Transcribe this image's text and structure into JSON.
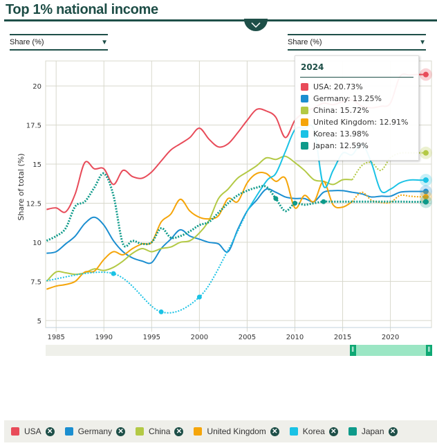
{
  "header": {
    "title": "Top 1% national income"
  },
  "selects": {
    "left": "Share (%)",
    "right": "Share (%)"
  },
  "tooltip": {
    "year": "2024",
    "rows": [
      {
        "label": "USA: 20.73%",
        "color": "#e84b59"
      },
      {
        "label": "Germany: 13.25%",
        "color": "#1b8ed0"
      },
      {
        "label": "China: 15.72%",
        "color": "#b3c945"
      },
      {
        "label": "United Kingdom: 12.91%",
        "color": "#f5a50a"
      },
      {
        "label": "Korea: 13.98%",
        "color": "#1ac2e5"
      },
      {
        "label": "Japan: 12.59%",
        "color": "#0e9a8a"
      }
    ]
  },
  "slider": {
    "range_start_fraction": 0.79,
    "range_end_fraction": 1.0
  },
  "legend": [
    {
      "label": "USA",
      "color": "#e84b59"
    },
    {
      "label": "Germany",
      "color": "#1b8ed0"
    },
    {
      "label": "China",
      "color": "#b3c945"
    },
    {
      "label": "United Kingdom",
      "color": "#f5a50a"
    },
    {
      "label": "Korea",
      "color": "#1ac2e5"
    },
    {
      "label": "Japan",
      "color": "#0e9a8a"
    }
  ],
  "chart_data": {
    "type": "line",
    "title": "Top 1% national income",
    "xlabel": "",
    "ylabel": "Share of total (%)",
    "xlim": [
      1984,
      2024
    ],
    "ylim": [
      4.5,
      22
    ],
    "x_ticks": [
      1985,
      1990,
      1995,
      2000,
      2005,
      2010,
      2015,
      2020
    ],
    "y_ticks": [
      5,
      7.5,
      10,
      12.5,
      15,
      17.5,
      20
    ],
    "grid": true,
    "legend_position": "bottom",
    "series": [
      {
        "name": "USA",
        "color": "#e84b59",
        "style": "solid",
        "points": [
          [
            1984,
            12.1
          ],
          [
            1985,
            12.2
          ],
          [
            1986,
            11.95
          ],
          [
            1987,
            13.1
          ],
          [
            1988,
            15.1
          ],
          [
            1989,
            14.7
          ],
          [
            1990,
            14.7
          ],
          [
            1991,
            13.7
          ],
          [
            1992,
            14.6
          ],
          [
            1993,
            14.2
          ],
          [
            1994,
            14.1
          ],
          [
            1995,
            14.5
          ],
          [
            1996,
            15.2
          ],
          [
            1997,
            15.9
          ],
          [
            1998,
            16.3
          ],
          [
            1999,
            16.7
          ],
          [
            2000,
            17.3
          ],
          [
            2001,
            16.6
          ],
          [
            2002,
            16.1
          ],
          [
            2003,
            16.3
          ],
          [
            2004,
            17.0
          ],
          [
            2005,
            17.8
          ],
          [
            2006,
            18.5
          ],
          [
            2007,
            18.4
          ],
          [
            2008,
            18.0
          ],
          [
            2009,
            16.7
          ],
          [
            2010,
            17.8
          ],
          [
            2011,
            18.3
          ],
          [
            2012,
            18.6
          ],
          [
            2013,
            18.9
          ],
          [
            2014,
            18.8
          ],
          [
            2015,
            19.0
          ],
          [
            2016,
            19.1
          ],
          [
            2017,
            18.7
          ],
          [
            2018,
            18.6
          ],
          [
            2019,
            18.7
          ],
          [
            2020,
            18.9
          ],
          [
            2021,
            20.6
          ],
          [
            2022,
            20.7
          ],
          [
            2023,
            20.73
          ],
          [
            2024,
            20.73
          ]
        ]
      },
      {
        "name": "Germany",
        "color": "#1b8ed0",
        "style": "solid",
        "points": [
          [
            1984,
            9.3
          ],
          [
            1985,
            9.4
          ],
          [
            1986,
            9.9
          ],
          [
            1987,
            10.4
          ],
          [
            1988,
            11.2
          ],
          [
            1989,
            11.6
          ],
          [
            1990,
            11.1
          ],
          [
            1991,
            10.1
          ],
          [
            1992,
            9.4
          ],
          [
            1993,
            9.0
          ],
          [
            1994,
            8.8
          ],
          [
            1995,
            8.7
          ],
          [
            1996,
            9.6
          ],
          [
            1997,
            10.2
          ],
          [
            1998,
            10.8
          ],
          [
            1999,
            10.4
          ],
          [
            2000,
            10.2
          ],
          [
            2001,
            10.0
          ],
          [
            2002,
            9.9
          ],
          [
            2003,
            9.4
          ],
          [
            2004,
            10.8
          ],
          [
            2005,
            12.0
          ],
          [
            2006,
            12.7
          ],
          [
            2007,
            13.4
          ],
          [
            2008,
            13.2
          ],
          [
            2009,
            12.9
          ],
          [
            2010,
            12.8
          ],
          [
            2011,
            12.8
          ],
          [
            2012,
            12.6
          ],
          [
            2013,
            13.2
          ],
          [
            2014,
            13.3
          ],
          [
            2015,
            13.3
          ],
          [
            2016,
            13.2
          ],
          [
            2017,
            13.1
          ],
          [
            2018,
            12.9
          ],
          [
            2019,
            12.95
          ],
          [
            2020,
            12.95
          ],
          [
            2021,
            13.2
          ],
          [
            2022,
            13.25
          ],
          [
            2023,
            13.25
          ],
          [
            2024,
            13.25
          ]
        ]
      },
      {
        "name": "China",
        "color": "#b3c945",
        "style": "solid_then_dotted",
        "points": [
          [
            1984,
            7.5
          ],
          [
            1985,
            8.1
          ],
          [
            1986,
            8.05
          ],
          [
            1987,
            7.95
          ],
          [
            1988,
            8.05
          ],
          [
            1989,
            8.3
          ],
          [
            1990,
            8.2
          ],
          [
            1991,
            8.4
          ],
          [
            1992,
            8.8
          ],
          [
            1993,
            9.3
          ],
          [
            1994,
            9.6
          ],
          [
            1995,
            9.4
          ],
          [
            1996,
            9.6
          ],
          [
            1997,
            9.7
          ],
          [
            1998,
            10.0
          ],
          [
            1999,
            10.1
          ],
          [
            2000,
            10.6
          ],
          [
            2001,
            11.4
          ],
          [
            2002,
            12.8
          ],
          [
            2003,
            13.4
          ],
          [
            2004,
            14.1
          ],
          [
            2005,
            14.5
          ],
          [
            2006,
            14.9
          ],
          [
            2007,
            15.4
          ],
          [
            2008,
            15.3
          ],
          [
            2009,
            15.5
          ],
          [
            2010,
            15.1
          ],
          [
            2011,
            14.6
          ],
          [
            2012,
            14.0
          ],
          [
            2013,
            13.9
          ],
          [
            2014,
            13.7
          ],
          [
            2015,
            14.0
          ],
          [
            2016,
            14.0
          ],
          [
            2017,
            14.9
          ],
          [
            2018,
            15.1
          ],
          [
            2019,
            14.6
          ],
          [
            2020,
            15.4
          ],
          [
            2021,
            15.7
          ],
          [
            2022,
            15.72
          ],
          [
            2023,
            15.72
          ],
          [
            2024,
            15.72
          ]
        ]
      },
      {
        "name": "United Kingdom",
        "color": "#f5a50a",
        "style": "solid_then_dotted",
        "points": [
          [
            1984,
            7.0
          ],
          [
            1985,
            7.2
          ],
          [
            1986,
            7.3
          ],
          [
            1987,
            7.5
          ],
          [
            1988,
            8.1
          ],
          [
            1989,
            8.15
          ],
          [
            1990,
            8.9
          ],
          [
            1991,
            9.4
          ],
          [
            1992,
            9.2
          ],
          [
            1993,
            9.6
          ],
          [
            1994,
            9.9
          ],
          [
            1995,
            10.0
          ],
          [
            1996,
            11.3
          ],
          [
            1997,
            11.8
          ],
          [
            1998,
            12.75
          ],
          [
            1999,
            12.0
          ],
          [
            2000,
            11.6
          ],
          [
            2001,
            11.5
          ],
          [
            2002,
            11.7
          ],
          [
            2003,
            12.8
          ],
          [
            2004,
            12.6
          ],
          [
            2005,
            13.8
          ],
          [
            2006,
            14.4
          ],
          [
            2007,
            14.4
          ],
          [
            2008,
            13.9
          ],
          [
            2009,
            14.1
          ],
          [
            2010,
            12.2
          ],
          [
            2011,
            13.0
          ],
          [
            2012,
            12.6
          ],
          [
            2013,
            13.9
          ],
          [
            2014,
            12.4
          ],
          [
            2015,
            12.25
          ],
          [
            2016,
            12.6
          ],
          [
            2017,
            13.2
          ],
          [
            2018,
            12.7
          ],
          [
            2019,
            12.55
          ],
          [
            2020,
            12.55
          ],
          [
            2021,
            13.0
          ],
          [
            2022,
            12.95
          ],
          [
            2023,
            12.91
          ],
          [
            2024,
            12.91
          ]
        ]
      },
      {
        "name": "Korea",
        "color": "#1ac2e5",
        "style": "dotted_then_solid",
        "points": [
          [
            1984,
            7.55
          ],
          [
            1991,
            8.0
          ],
          [
            1996,
            5.55
          ],
          [
            2000,
            6.5
          ],
          [
            2003,
            9.5
          ],
          [
            2005,
            12.0
          ],
          [
            2007,
            13.9
          ],
          [
            2008,
            14.4
          ],
          [
            2009,
            15.8
          ],
          [
            2010,
            17.2
          ],
          [
            2011,
            17.3
          ],
          [
            2012,
            17.2
          ],
          [
            2013,
            13.6
          ],
          [
            2014,
            14.6
          ],
          [
            2015,
            15.7
          ],
          [
            2016,
            15.6
          ],
          [
            2017,
            16.3
          ],
          [
            2018,
            15.1
          ],
          [
            2019,
            13.3
          ],
          [
            2020,
            13.4
          ],
          [
            2021,
            13.8
          ],
          [
            2022,
            13.98
          ],
          [
            2023,
            13.98
          ],
          [
            2024,
            13.98
          ]
        ]
      },
      {
        "name": "Japan",
        "color": "#0e9a8a",
        "style": "dotted",
        "points": [
          [
            1984,
            10.1
          ],
          [
            1985,
            10.4
          ],
          [
            1986,
            10.9
          ],
          [
            1987,
            12.3
          ],
          [
            1988,
            12.6
          ],
          [
            1989,
            13.5
          ],
          [
            1990,
            14.4
          ],
          [
            1991,
            13.0
          ],
          [
            1992,
            9.9
          ],
          [
            1993,
            10.1
          ],
          [
            1994,
            9.9
          ],
          [
            1995,
            10.0
          ],
          [
            1996,
            10.9
          ],
          [
            1997,
            10.3
          ],
          [
            1998,
            10.4
          ],
          [
            1999,
            10.7
          ],
          [
            2000,
            11.1
          ],
          [
            2001,
            11.3
          ],
          [
            2002,
            11.9
          ],
          [
            2003,
            12.5
          ],
          [
            2004,
            13.0
          ],
          [
            2005,
            13.3
          ],
          [
            2006,
            13.5
          ],
          [
            2007,
            13.55
          ],
          [
            2008,
            12.8
          ],
          [
            2009,
            12.0
          ],
          [
            2010,
            12.5
          ],
          [
            2011,
            12.4
          ],
          [
            2012,
            12.5
          ],
          [
            2013,
            12.6
          ],
          [
            2014,
            12.6
          ],
          [
            2015,
            12.6
          ],
          [
            2016,
            12.6
          ],
          [
            2017,
            12.6
          ],
          [
            2018,
            12.6
          ],
          [
            2019,
            12.6
          ],
          [
            2020,
            12.6
          ],
          [
            2021,
            12.6
          ],
          [
            2022,
            12.59
          ],
          [
            2023,
            12.59
          ],
          [
            2024,
            12.59
          ]
        ]
      }
    ]
  }
}
